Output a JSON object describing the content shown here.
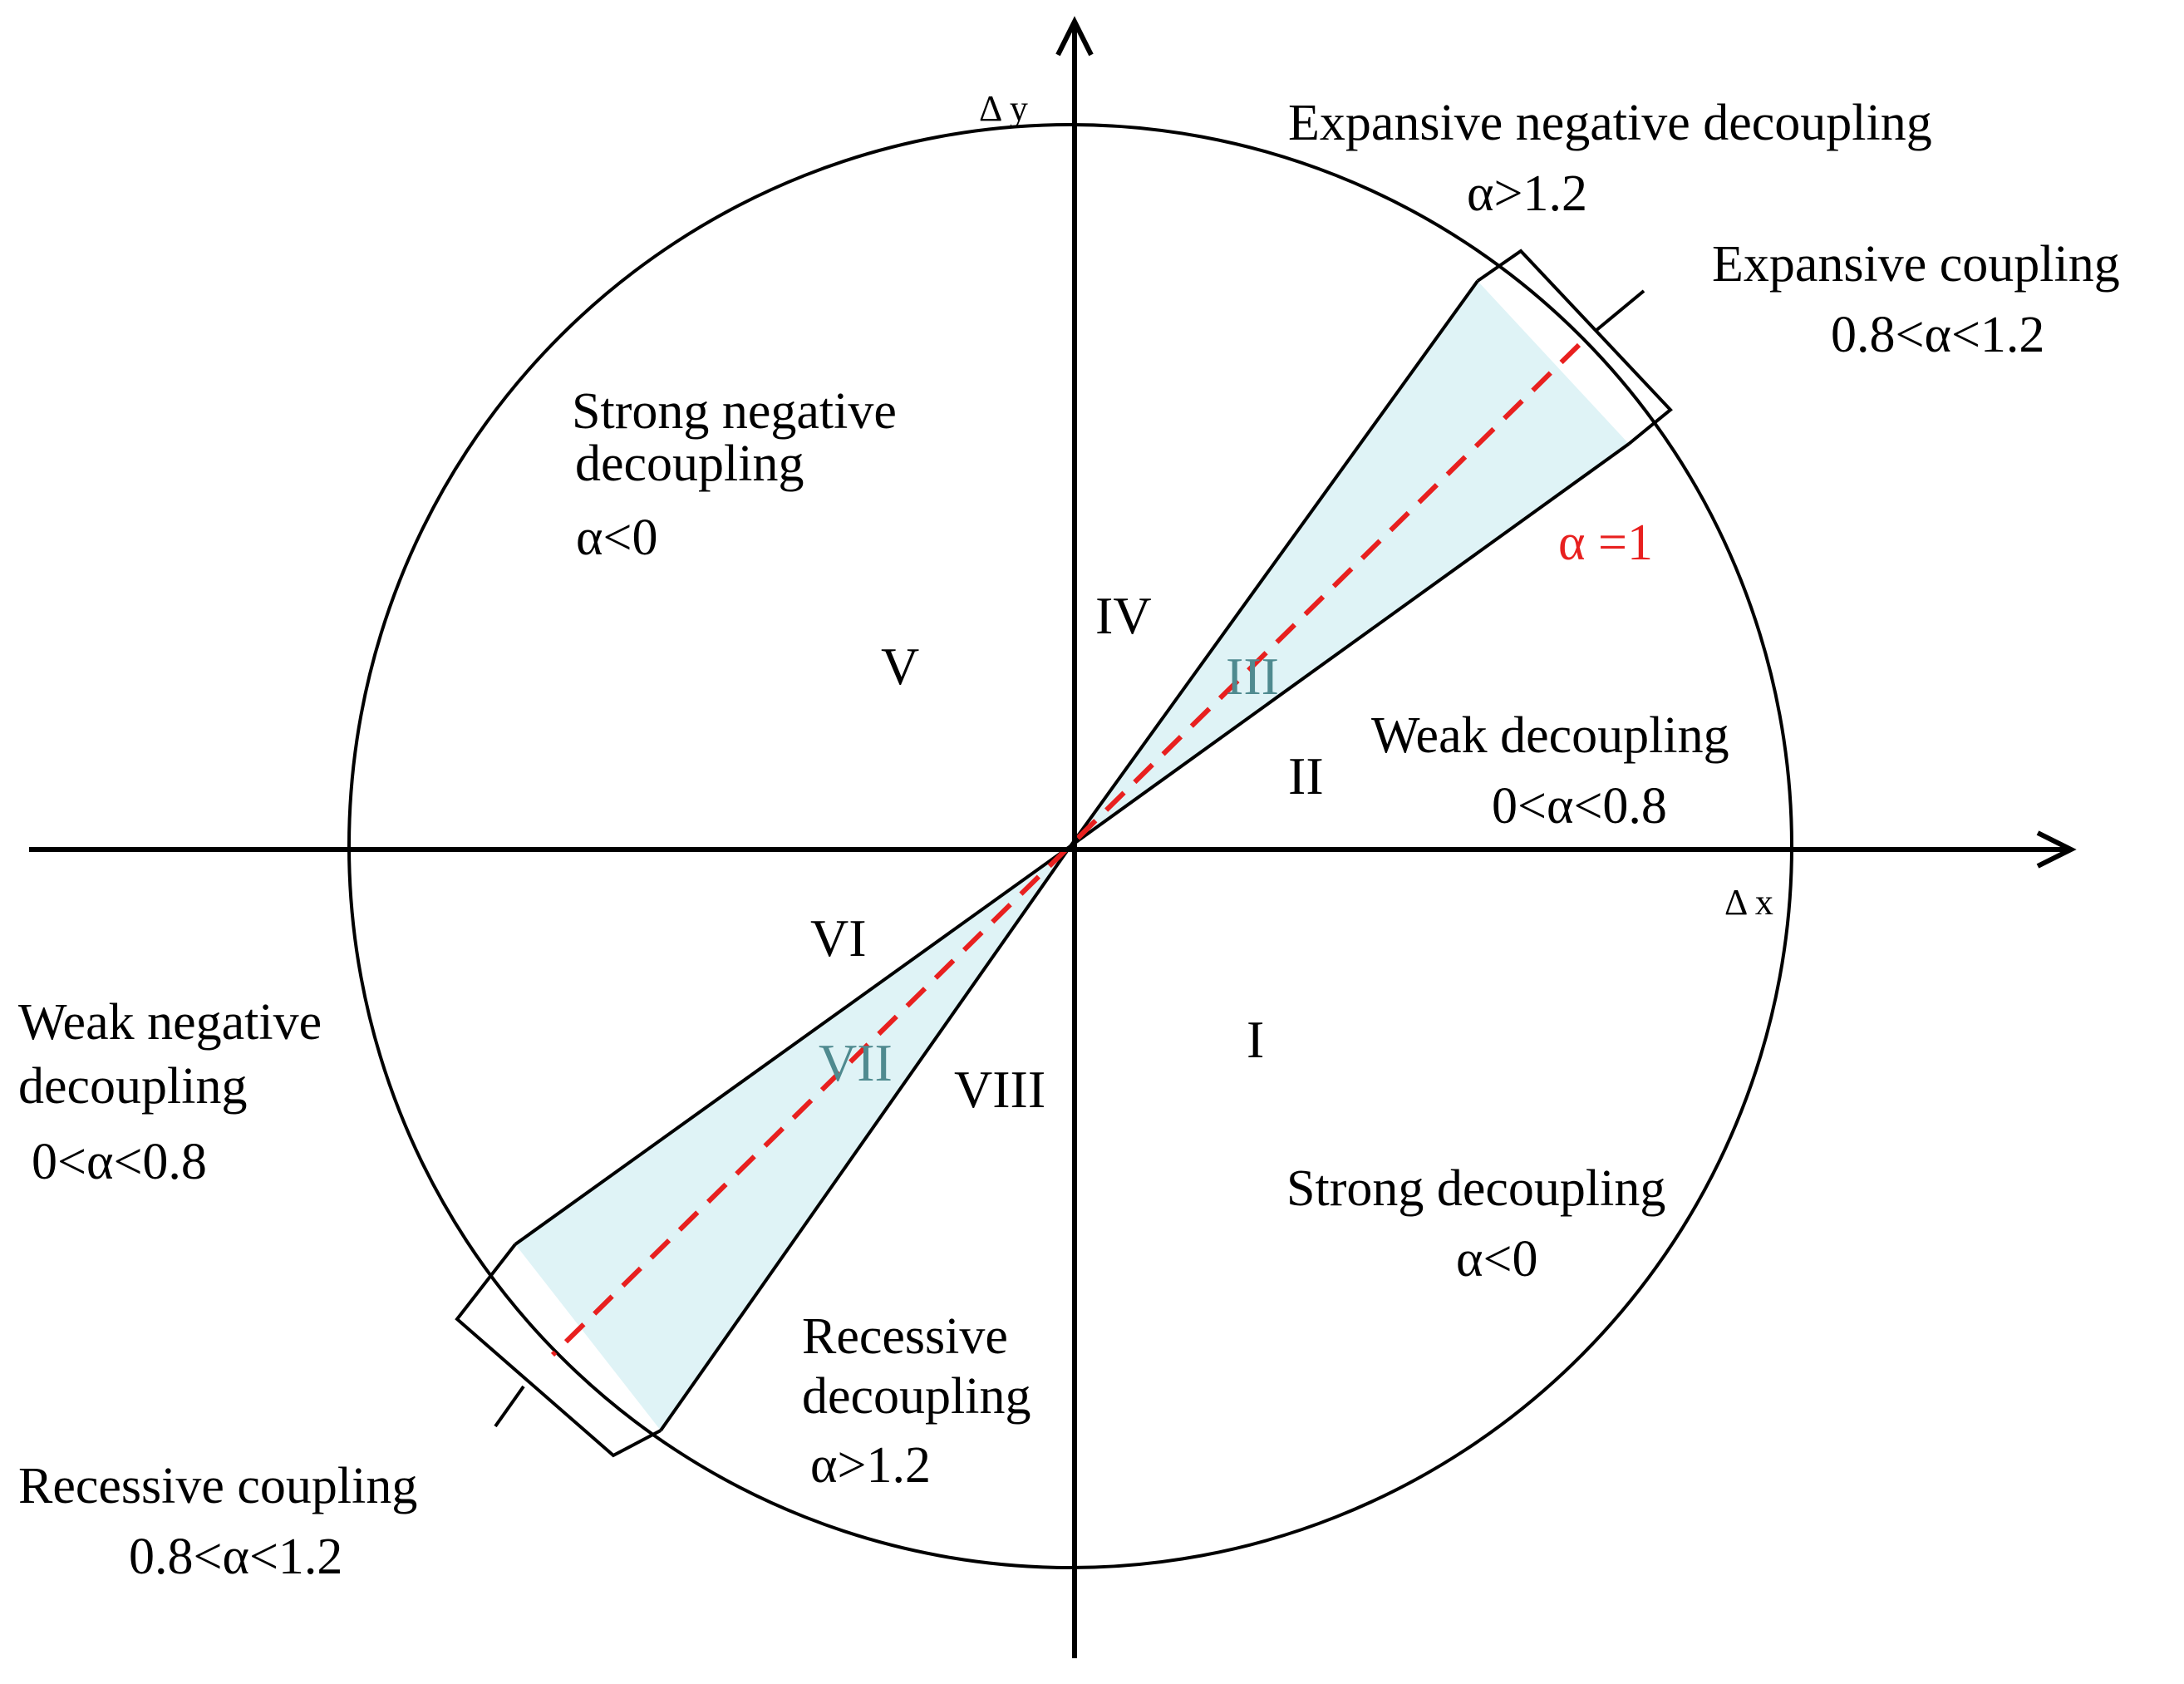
{
  "axes": {
    "y_label": "Δ y",
    "x_label": "Δ x"
  },
  "reference_line": {
    "label": "α =1",
    "color": "#e8201f"
  },
  "band_fill": "#dff3f6",
  "regions": {
    "expansive_negative": {
      "name": "Expansive  negative  decoupling",
      "cond": "α>1.2"
    },
    "expansive_coupling": {
      "name": "Expansive  coupling",
      "cond": "0.8<α<1.2"
    },
    "strong_negative": {
      "name1": "Strong negative",
      "name2": "decoupling",
      "cond": "α<0"
    },
    "weak_decoupling": {
      "name": "Weak decoupling",
      "cond": "0<α<0.8"
    },
    "weak_negative": {
      "name1": "Weak negative",
      "name2": "decoupling",
      "cond": "0<α<0.8"
    },
    "strong_decoupling": {
      "name": "Strong  decoupling",
      "cond": "α<0"
    },
    "recessive_decoupling": {
      "name1": "Recessive",
      "name2": "decoupling",
      "cond": "α>1.2"
    },
    "recessive_coupling": {
      "name": "Recessive  coupling",
      "cond": "0.8<α<1.2"
    }
  },
  "sectors": {
    "I": "I",
    "II": "II",
    "III": "III",
    "IV": "IV",
    "V": "V",
    "VI": "VI",
    "VII": "VII",
    "VIII": "VIII"
  }
}
